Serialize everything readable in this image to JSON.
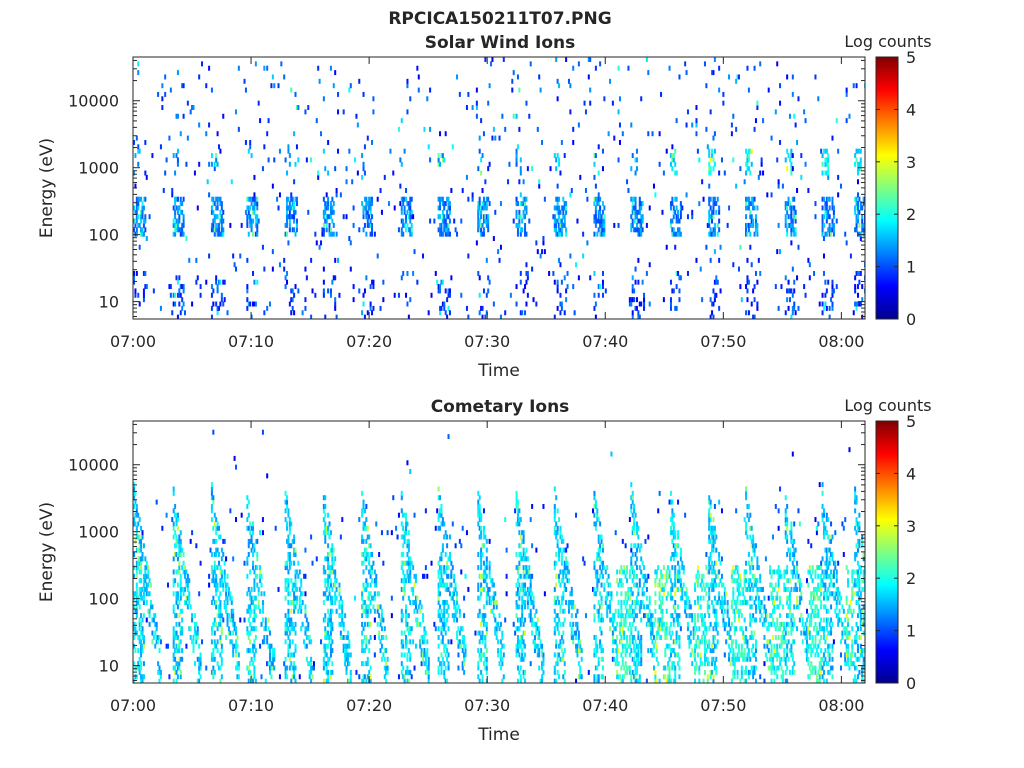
{
  "figure": {
    "title": "RPCICA150211T07.PNG"
  },
  "colormap": [
    "#00008f",
    "#0000ff",
    "#0080ff",
    "#00ffff",
    "#80ff80",
    "#ffff00",
    "#ff8000",
    "#ff0000",
    "#800000"
  ],
  "chart_data": [
    {
      "type": "heatmap",
      "title": "Solar Wind Ions",
      "xlabel": "Time",
      "ylabel": "Energy (eV)",
      "x_tick_labels": [
        "07:00",
        "07:10",
        "07:20",
        "07:30",
        "07:40",
        "07:50",
        "08:00"
      ],
      "x_range": [
        "07:00",
        "08:02"
      ],
      "y_scale": "log",
      "y_tick_labels": [
        "10",
        "100",
        "1000",
        "10000"
      ],
      "y_range": [
        5.5,
        45000
      ],
      "colorbar": {
        "label": "Log counts",
        "range": [
          0,
          5
        ],
        "tick_labels": [
          "0",
          "1",
          "2",
          "3",
          "4",
          "5"
        ]
      },
      "cycle_start_minutes": [
        0,
        3.3,
        6.6,
        9.5,
        12.8,
        16,
        19.2,
        22.6,
        25.8,
        29.1,
        32.3,
        35.6,
        38.9,
        42.1,
        45.4,
        48.6,
        51.8,
        55.1,
        58.3,
        61
      ]
    },
    {
      "type": "heatmap",
      "title": "Cometary Ions",
      "xlabel": "Time",
      "ylabel": "Energy (eV)",
      "x_tick_labels": [
        "07:00",
        "07:10",
        "07:20",
        "07:30",
        "07:40",
        "07:50",
        "08:00"
      ],
      "x_range": [
        "07:00",
        "08:02"
      ],
      "y_scale": "log",
      "y_tick_labels": [
        "10",
        "100",
        "1000",
        "10000"
      ],
      "y_range": [
        5.5,
        45000
      ],
      "colorbar": {
        "label": "Log counts",
        "range": [
          0,
          5
        ],
        "tick_labels": [
          "0",
          "1",
          "2",
          "3",
          "4",
          "5"
        ]
      },
      "cycle_start_minutes": [
        0,
        3.3,
        6.6,
        9.5,
        12.8,
        16,
        19.2,
        22.6,
        25.8,
        29.1,
        32.3,
        35.6,
        38.9,
        42.1,
        45.4,
        48.6,
        51.8,
        55.1,
        58.3,
        61
      ]
    }
  ]
}
